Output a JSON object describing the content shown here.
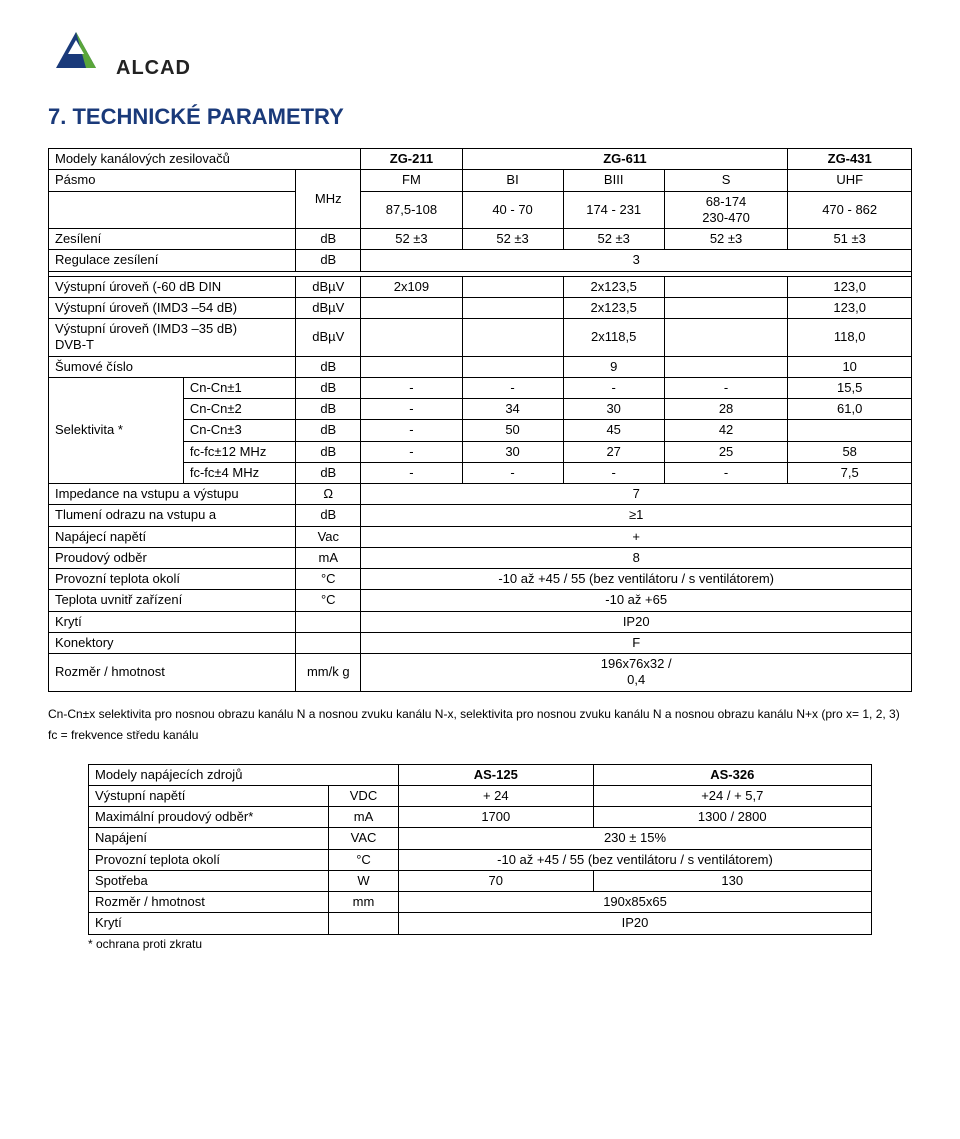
{
  "brand": "ALCAD",
  "logo_colors": {
    "dark_blue": "#1a3a7a",
    "green": "#5aa63a",
    "white": "#ffffff"
  },
  "title": "7. TECHNICKÉ PARAMETRY",
  "spec": {
    "header": {
      "models_label": "Modely kanálových zesilovačů",
      "band_label": "Pásmo",
      "models": [
        "ZG-211",
        "ZG-611",
        "ZG-431"
      ],
      "band_unit": "MHz",
      "band_cols": [
        "FM",
        "BI",
        "BIII",
        "S",
        "UHF"
      ],
      "band_ranges": [
        "87,5-108",
        "40 - 70",
        "174 - 231",
        "68-174\n230-470",
        "470 - 862"
      ]
    },
    "rows": [
      {
        "label": "Zesílení",
        "unit": "dB",
        "cells": [
          "52 ±3",
          "52 ±3",
          "52 ±3",
          "52 ±3",
          "51 ±3"
        ]
      },
      {
        "label": "Regulace zesílení",
        "unit": "dB",
        "span": "3"
      },
      {
        "gap": true
      },
      {
        "label": "Výstupní úroveň (-60 dB DIN",
        "unit": "dBµV",
        "cells": [
          "2x109",
          "",
          "2x123,5",
          "",
          "123,0"
        ]
      },
      {
        "label": "Výstupní úroveň (IMD3 –54 dB)",
        "unit": "dBµV",
        "cells": [
          "",
          "",
          "2x123,5",
          "",
          "123,0"
        ]
      },
      {
        "label": "Výstupní úroveň (IMD3 –35 dB)\nDVB-T",
        "unit": "dBµV",
        "cells": [
          "",
          "",
          "2x118,5",
          "",
          "118,0"
        ]
      },
      {
        "label": "Šumové číslo",
        "unit": "dB",
        "cells": [
          "",
          "",
          "9",
          "",
          "10"
        ]
      }
    ],
    "selektivita": {
      "group_label": "Selektivita *",
      "rows": [
        {
          "sub": "Cn-Cn±1",
          "unit": "dB",
          "cells": [
            "-",
            "-",
            "-",
            "-",
            "15,5"
          ]
        },
        {
          "sub": "Cn-Cn±2",
          "unit": "dB",
          "cells": [
            "-",
            "34",
            "30",
            "28",
            "61,0"
          ]
        },
        {
          "sub": "Cn-Cn±3",
          "unit": "dB",
          "cells": [
            "-",
            "50",
            "45",
            "42",
            ""
          ]
        },
        {
          "sub": "fc-fc±12 MHz",
          "unit": "dB",
          "cells": [
            "-",
            "30",
            "27",
            "25",
            "58"
          ]
        },
        {
          "sub": "fc-fc±4 MHz",
          "unit": "dB",
          "cells": [
            "-",
            "-",
            "-",
            "-",
            "7,5"
          ]
        }
      ]
    },
    "bottom": [
      {
        "label": "Impedance na vstupu a výstupu",
        "unit": "Ω",
        "span": "7"
      },
      {
        "label": "Tlumení odrazu na vstupu a",
        "unit": "dB",
        "span": "≥1"
      },
      {
        "label": "Napájecí napětí",
        "unit": "Vac",
        "span": "+"
      },
      {
        "label": "Proudový odběr",
        "unit": "mA",
        "span": "8"
      },
      {
        "label": "Provozní teplota okolí",
        "unit": "°C",
        "span": "-10 až +45 / 55 (bez ventilátoru / s ventilátorem)"
      },
      {
        "label": "Teplota uvnitř zařízení",
        "unit": "°C",
        "span": "-10 až +65"
      },
      {
        "label": "Krytí",
        "unit": "",
        "span": "IP20"
      },
      {
        "label": "Konektory",
        "unit": "",
        "span": "F"
      },
      {
        "label": "Rozměr / hmotnost",
        "unit": "mm/k g",
        "span": "196x76x32 /\n0,4"
      }
    ]
  },
  "note1": "Cn-Cn±x selektivita pro nosnou obrazu kanálu N a nosnou zvuku kanálu N-x,  selektivita pro nosnou zvuku kanálu N a nosnou obrazu kanálu N+x (pro x= 1, 2, 3)",
  "note2": "fc = frekvence středu kanálu",
  "psu": {
    "header": {
      "label": "Modely napájecích zdrojů",
      "models": [
        "AS-125",
        "AS-326"
      ]
    },
    "rows": [
      {
        "label": "Výstupní napětí",
        "unit": "VDC",
        "cells": [
          "+ 24",
          "+24 / + 5,7"
        ]
      },
      {
        "label": "Maximální proudový odběr*",
        "unit": "mA",
        "cells": [
          "1700",
          "1300 / 2800"
        ]
      },
      {
        "label": "Napájení",
        "unit": "VAC",
        "span": "230 ± 15%"
      },
      {
        "label": "Provozní teplota okolí",
        "unit": "°C",
        "span": "-10 až +45 / 55 (bez ventilátoru / s ventilátorem)"
      },
      {
        "label": "Spotřeba",
        "unit": "W",
        "cells": [
          "70",
          "130"
        ]
      },
      {
        "label": "Rozměr / hmotnost",
        "unit": "mm",
        "span": "190x85x65"
      },
      {
        "label": "Krytí",
        "unit": "",
        "span": "IP20"
      }
    ],
    "footer": "* ochrana proti zkratu"
  }
}
